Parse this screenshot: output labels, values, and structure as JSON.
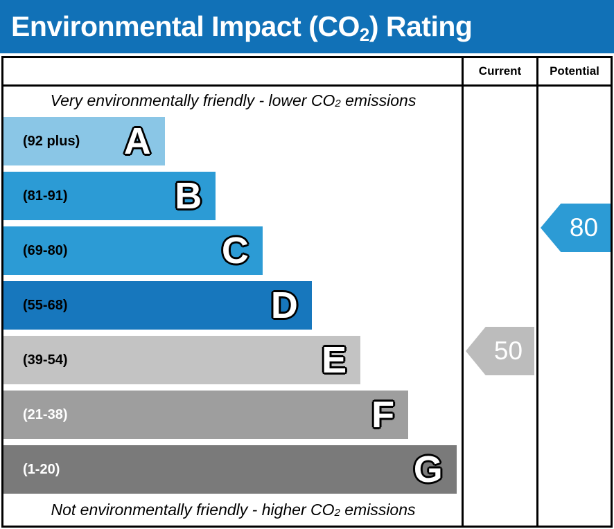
{
  "title": {
    "prefix": "Environmental Impact (CO",
    "subscript": "2",
    "suffix": ") Rating"
  },
  "header": {
    "current_label": "Current",
    "potential_label": "Potential"
  },
  "captions": {
    "top": {
      "prefix": "Very environmentally friendly - lower CO",
      "subscript": "2",
      "suffix": " emissions"
    },
    "bottom": {
      "prefix": "Not environmentally friendly - higher CO",
      "subscript": "2",
      "suffix": " emissions"
    }
  },
  "bands": [
    {
      "letter": "A",
      "range": "(92 plus)",
      "color": "#8ac6e6",
      "label_color": "#000000",
      "width_pct": 35.1
    },
    {
      "letter": "B",
      "range": "(81-91)",
      "color": "#2c9bd5",
      "label_color": "#000000",
      "width_pct": 46.2
    },
    {
      "letter": "C",
      "range": "(69-80)",
      "color": "#2c9bd5",
      "label_color": "#000000",
      "width_pct": 56.4
    },
    {
      "letter": "D",
      "range": "(55-68)",
      "color": "#1777bd",
      "label_color": "#000000",
      "width_pct": 67.1
    },
    {
      "letter": "E",
      "range": "(39-54)",
      "color": "#c3c3c3",
      "label_color": "#000000",
      "width_pct": 77.7
    },
    {
      "letter": "F",
      "range": "(21-38)",
      "color": "#9e9e9e",
      "label_color": "#ffffff",
      "width_pct": 88.1
    },
    {
      "letter": "G",
      "range": "(1-20)",
      "color": "#7a7a7a",
      "label_color": "#ffffff",
      "width_pct": 98.6
    }
  ],
  "current": {
    "label": "50",
    "color": "#bcbcbc"
  },
  "potential": {
    "label": "80",
    "color": "#2c9bd5"
  },
  "colors": {
    "title_bar": "#1171b7",
    "border": "#000000",
    "background": "#ffffff"
  },
  "chart_data": {
    "type": "bar",
    "orientation": "horizontal",
    "title": "Environmental Impact (CO2) Rating",
    "categories": [
      "A",
      "B",
      "C",
      "D",
      "E",
      "F",
      "G"
    ],
    "band_score_ranges": [
      "92 plus",
      "81-91",
      "69-80",
      "55-68",
      "39-54",
      "21-38",
      "1-20"
    ],
    "bar_lengths_pct_of_track": [
      35.1,
      46.2,
      56.4,
      67.1,
      77.7,
      88.1,
      98.6
    ],
    "band_colors": [
      "#8ac6e6",
      "#2c9bd5",
      "#2c9bd5",
      "#1777bd",
      "#c3c3c3",
      "#9e9e9e",
      "#7a7a7a"
    ],
    "markers": [
      {
        "name": "Current",
        "value": 50,
        "band": "E",
        "color": "#bcbcbc"
      },
      {
        "name": "Potential",
        "value": 80,
        "band": "C",
        "color": "#2c9bd5"
      }
    ],
    "top_annotation": "Very environmentally friendly - lower CO2 emissions",
    "bottom_annotation": "Not environmentally friendly - higher CO2 emissions",
    "legend": "off",
    "grid": "off"
  }
}
